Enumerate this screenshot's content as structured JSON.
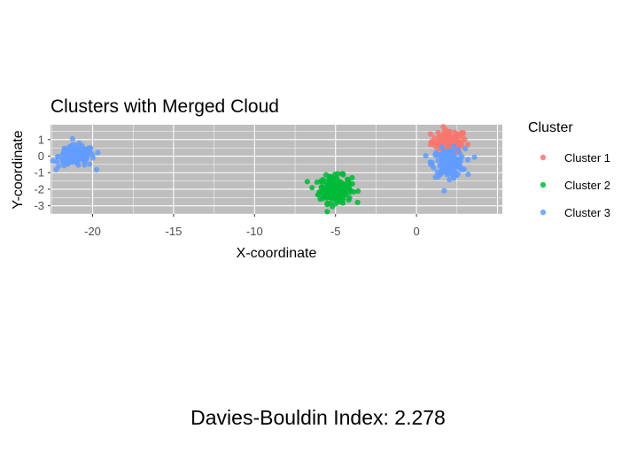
{
  "chart_data": {
    "type": "scatter",
    "title": "Clusters with Merged Cloud",
    "xlabel": "X-coordinate",
    "ylabel": "Y-coordinate",
    "xlim": [
      -22.6,
      5.3
    ],
    "ylim": [
      -3.5,
      1.9
    ],
    "x_ticks": [
      -20,
      -15,
      -10,
      -5,
      0
    ],
    "y_ticks": [
      1,
      0,
      -1,
      -2,
      -3
    ],
    "grid": true,
    "legend": {
      "title": "Cluster",
      "position": "right"
    },
    "series": [
      {
        "name": "Cluster 1",
        "color": "#F8766D",
        "center": [
          2.0,
          0.9
        ],
        "spread": [
          0.55,
          0.35
        ],
        "count": 90
      },
      {
        "name": "Cluster 2",
        "color": "#00BA38",
        "center": [
          -5.0,
          -2.0
        ],
        "spread": [
          0.5,
          0.4
        ],
        "count": 220
      },
      {
        "name": "Cluster 3",
        "color": "#619CFF",
        "extent": [
          [
            -21,
            0
          ],
          [
            2,
            -0.4
          ]
        ],
        "count": 300
      }
    ]
  },
  "annotation": "Davies-Bouldin Index: 2.278"
}
